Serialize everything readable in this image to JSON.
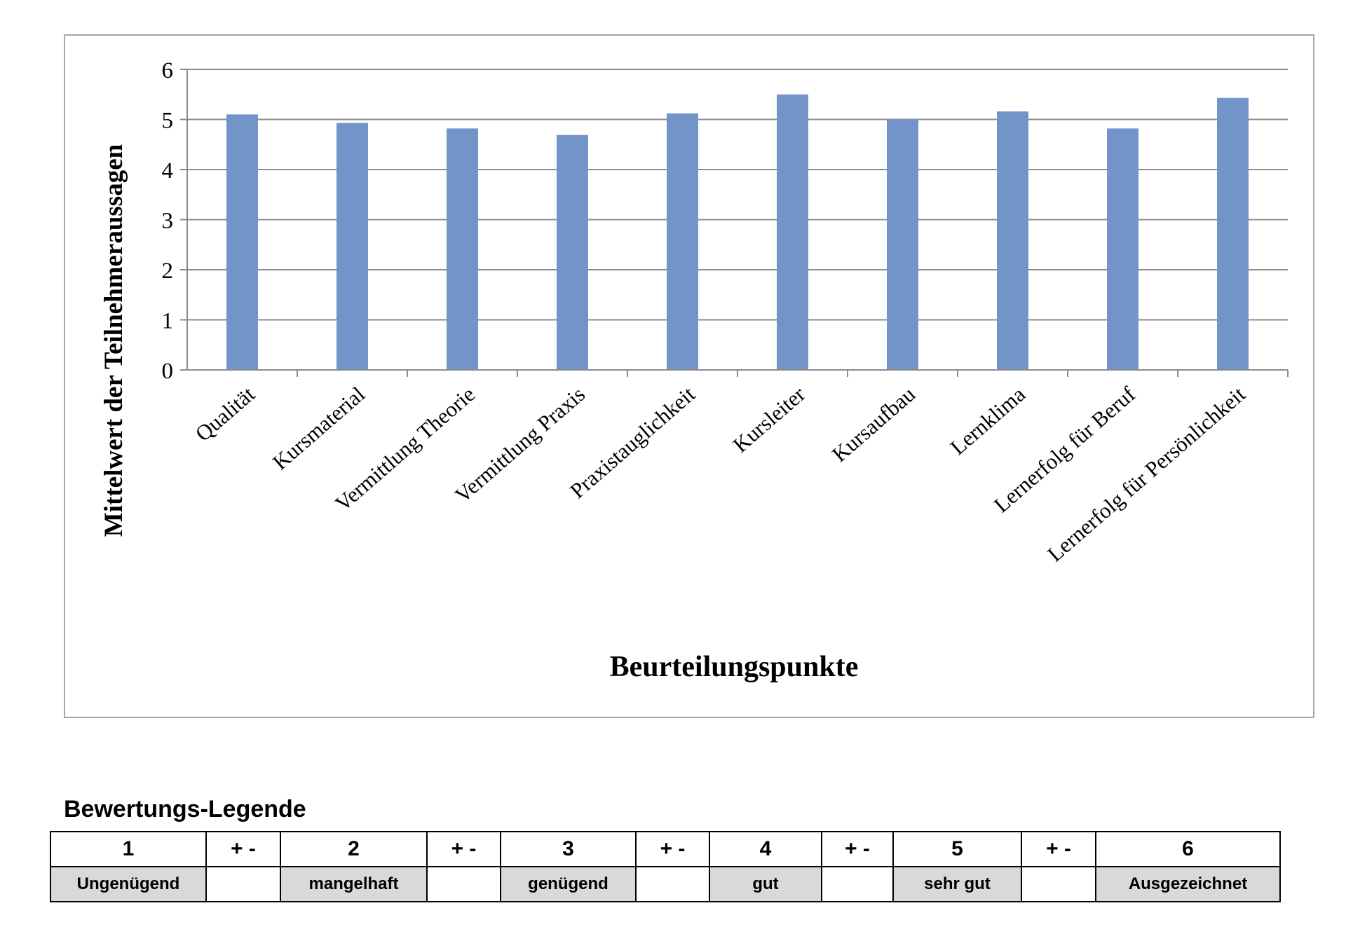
{
  "chart_data": {
    "type": "bar",
    "categories": [
      "Qualität",
      "Kursmaterial",
      "Vermittlung Theorie",
      "Vermittlung Praxis",
      "Praxistauglichkeit",
      "Kursleiter",
      "Kursaufbau",
      "Lernklima",
      "Lernerfolg für Beruf",
      "Lernerfolg für Persönlichkeit"
    ],
    "values": [
      5.1,
      4.93,
      4.82,
      4.69,
      5.12,
      5.5,
      5.0,
      5.16,
      4.82,
      5.43
    ],
    "xlabel": "Beurteilungspunkte",
    "ylabel": "Mittelwert der Teilnehmeraussagen",
    "ylim": [
      0,
      6
    ],
    "yticks": [
      0,
      1,
      2,
      3,
      4,
      5,
      6
    ],
    "grid": true,
    "bar_color": "#7394c8",
    "grid_color": "#8c8c8c"
  },
  "legend": {
    "title": "Bewertungs-Legende",
    "grades": [
      {
        "grade": "1",
        "label": "Ungenügend"
      },
      {
        "grade": "+ -",
        "label": ""
      },
      {
        "grade": "2",
        "label": "mangelhaft"
      },
      {
        "grade": "+ -",
        "label": ""
      },
      {
        "grade": "3",
        "label": "genügend"
      },
      {
        "grade": "+ -",
        "label": ""
      },
      {
        "grade": "4",
        "label": "gut"
      },
      {
        "grade": "+ -",
        "label": ""
      },
      {
        "grade": "5",
        "label": "sehr gut"
      },
      {
        "grade": "+ -",
        "label": ""
      },
      {
        "grade": "6",
        "label": "Ausgezeichnet"
      }
    ]
  }
}
